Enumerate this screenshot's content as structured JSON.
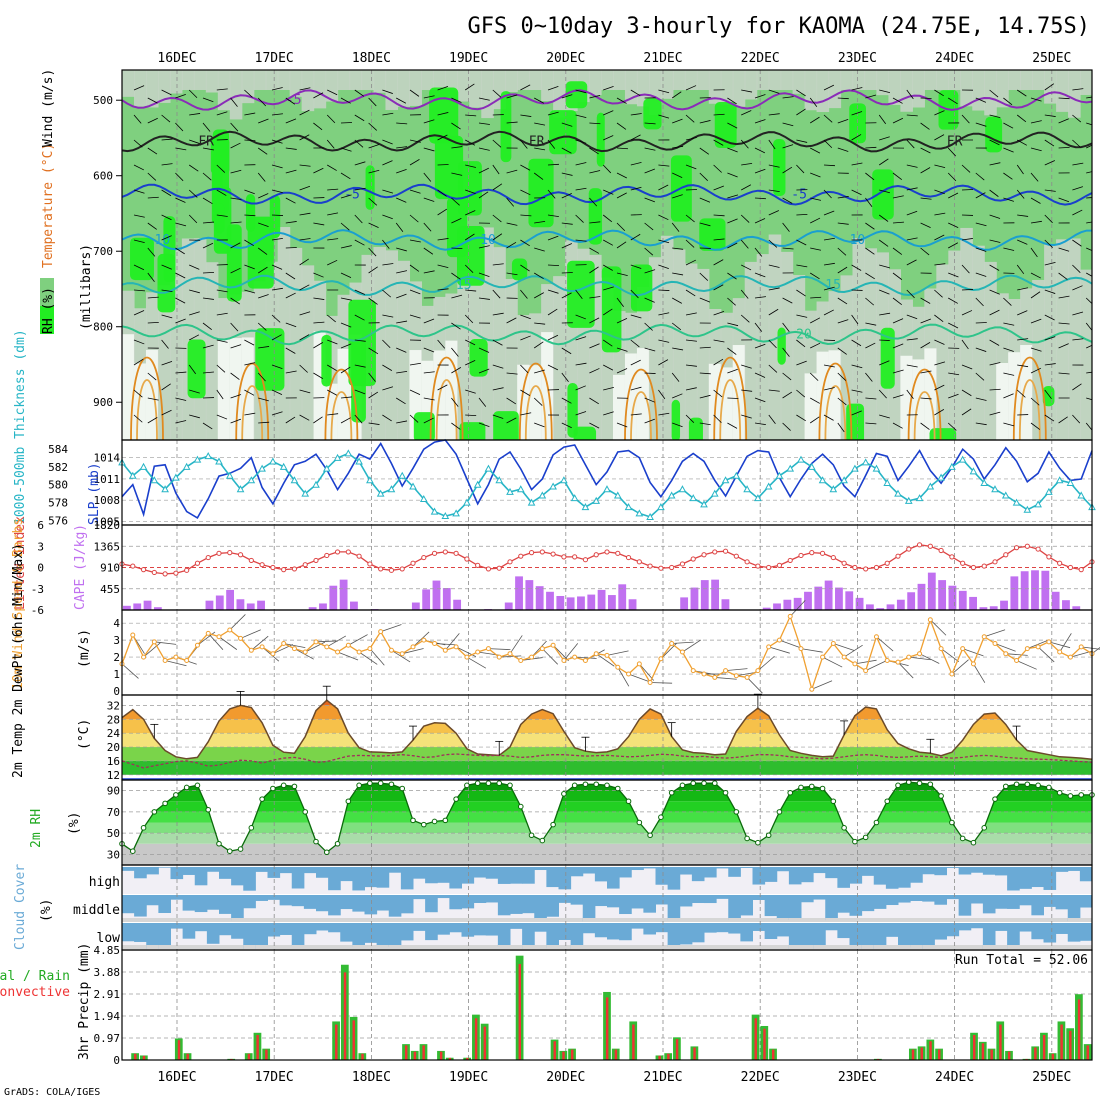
{
  "page": {
    "title": "GFS 0~10day 3-hourly for KAOMA (24.75E, 14.75S)",
    "credit": "GrADS: COLA/IGES"
  },
  "colors": {
    "rh_light": "#c8d4c8",
    "rh_mid": "#7fd07f",
    "rh_bright": "#22ee22",
    "rh_white": "#f0f6f0",
    "slp": "#1a3fcc",
    "thickness": "#27b5c6",
    "li": "#dd4444",
    "cape": "#c070f0",
    "wind": "#f0a030",
    "cloud": "#6aaad6",
    "precip_total": "#33bb33",
    "precip_conv": "#ee3333"
  },
  "chart_data": [
    {
      "type": "heatmap",
      "id": "upper_air",
      "ylabel": "(millibars)",
      "side_labels": [
        "RH (%)",
        "Temperature (°C)",
        "Wind (m/s)"
      ],
      "x_dates": [
        "16DEC",
        "17DEC",
        "18DEC",
        "19DEC",
        "20DEC",
        "21DEC",
        "22DEC",
        "23DEC",
        "24DEC",
        "25DEC"
      ],
      "y_ticks": [
        500,
        600,
        700,
        800,
        900
      ],
      "ylim": [
        460,
        950
      ],
      "isotherms": [
        {
          "label": "-5",
          "level": 500,
          "color": "#8a2bb8",
          "label_pos": [
            1.2
          ]
        },
        {
          "label": "FR",
          "level": 555,
          "color": "#222222",
          "label_pos": [
            0.3,
            3.7,
            8.0
          ]
        },
        {
          "label": "-5",
          "level": 625,
          "color": "#1a3fcc",
          "label_pos": [
            1.8,
            6.4
          ]
        },
        {
          "label": "10",
          "level": 685,
          "color": "#1a9fd0",
          "label_pos": [
            -0.15,
            3.2,
            7.0
          ]
        },
        {
          "label": "15",
          "level": 745,
          "color": "#25b5b5",
          "label_pos": [
            2.95,
            6.75
          ]
        },
        {
          "label": "20",
          "level": 810,
          "color": "#2ec48a",
          "label_pos": [
            6.45
          ]
        }
      ]
    },
    {
      "type": "line",
      "id": "slp_thickness",
      "left_label": "1000-500mb Thickness (dm)",
      "right_label": "SLP (mb)",
      "left_ticks": [
        576,
        578,
        580,
        582,
        584
      ],
      "right_ticks": [
        1005,
        1008,
        1011,
        1014
      ],
      "series": [
        {
          "name": "SLP (mb)",
          "axis": "right",
          "values": [
            1008.5,
            1010.2,
            1006.0,
            1012.8,
            1013.0,
            1009.0,
            1006.4,
            1005.5,
            1008.2,
            1011.4,
            1011.8,
            1012.5,
            1014.0,
            1009.8,
            1007.5,
            1010.4,
            1013.0,
            1013.5,
            1014.5,
            1012.3,
            1009.5,
            1011.8,
            1014.5,
            1013.8,
            1016.0,
            1013.2,
            1010.0,
            1012.5,
            1015.2,
            1016.2,
            1016.5,
            1014.5,
            1011.0,
            1007.5,
            1010.2,
            1013.8,
            1014.8,
            1012.4,
            1009.5,
            1011.0,
            1014.4,
            1015.5,
            1015.8,
            1013.0,
            1010.2,
            1012.0,
            1014.8,
            1015.0,
            1014.0,
            1010.5,
            1008.5,
            1010.8,
            1013.5,
            1014.6,
            1013.5,
            1010.8,
            1008.6,
            1011.4,
            1014.2,
            1015.0,
            1014.8,
            1011.2,
            1008.5,
            1011.0,
            1013.2,
            1014.5,
            1013.0,
            1010.0,
            1008.5,
            1011.5,
            1014.6,
            1014.2,
            1010.8,
            1012.8,
            1015.0,
            1012.2,
            1010.4,
            1012.6,
            1015.2,
            1013.8,
            1011.0,
            1013.0,
            1015.4,
            1013.5,
            1010.6,
            1011.8,
            1014.8,
            1012.5,
            1010.8,
            1011.0,
            1015.0
          ]
        },
        {
          "name": "1000-500mb Thickness (dm)",
          "axis": "left",
          "values": [
            582.5,
            581.0,
            582.0,
            580.5,
            579.5,
            580.8,
            582.0,
            582.8,
            583.2,
            582.6,
            581.0,
            579.5,
            580.5,
            581.8,
            582.6,
            582.0,
            580.5,
            579.0,
            580.0,
            581.8,
            583.0,
            583.5,
            582.6,
            580.5,
            579.0,
            579.5,
            581.0,
            579.8,
            578.4,
            577.0,
            576.5,
            576.8,
            578.0,
            580.0,
            581.8,
            580.5,
            579.2,
            579.5,
            578.0,
            578.8,
            579.8,
            580.5,
            578.5,
            577.5,
            578.2,
            579.5,
            578.8,
            577.5,
            576.8,
            576.4,
            577.5,
            578.8,
            579.5,
            578.5,
            577.8,
            579.0,
            580.5,
            581.0,
            579.5,
            578.5,
            579.8,
            581.0,
            581.8,
            582.8,
            582.0,
            580.5,
            579.5,
            580.5,
            581.8,
            582.5,
            581.8,
            580.2,
            579.0,
            578.2,
            578.5,
            579.8,
            580.8,
            582.0,
            582.8,
            581.5,
            580.2,
            579.5,
            578.8,
            578.0,
            577.2,
            577.8,
            579.2,
            580.5,
            580.2,
            578.8,
            577.5
          ]
        }
      ]
    },
    {
      "type": "bar",
      "id": "li_cape",
      "left_label": "Lifted Index",
      "right_label": "CAPE (J/kg)",
      "left_ticks": [
        "6",
        "3",
        "0",
        "-3",
        "-6"
      ],
      "right_ticks": [
        455,
        910,
        1365,
        1820
      ],
      "li_values": [
        -0.5,
        -0.2,
        0.3,
        0.7,
        0.9,
        0.8,
        0.4,
        -0.6,
        -1.4,
        -2.0,
        -2.1,
        -1.8,
        -1.0,
        -0.4,
        0.0,
        0.3,
        0.2,
        -0.4,
        -1.0,
        -1.7,
        -2.2,
        -2.2,
        -1.6,
        -0.5,
        0.2,
        0.4,
        0.2,
        -0.6,
        -1.4,
        -2.0,
        -2.2,
        -2.0,
        -1.2,
        -0.3,
        0.2,
        0.1,
        -0.8,
        -1.6,
        -2.1,
        -2.2,
        -1.9,
        -1.5,
        -1.5,
        -1.1,
        -1.8,
        -2.2,
        -2.0,
        -1.4,
        -0.8,
        -0.2,
        0.1,
        0.0,
        -0.5,
        -1.2,
        -1.8,
        -2.2,
        -2.3,
        -1.6,
        -0.8,
        -0.2,
        0.0,
        -0.3,
        -1.0,
        -1.7,
        -2.1,
        -2.0,
        -1.4,
        -0.6,
        0.0,
        0.2,
        0.0,
        -0.6,
        -1.6,
        -2.6,
        -3.2,
        -3.0,
        -2.4,
        -1.5,
        -0.6,
        0.0,
        -0.2,
        -0.8,
        -1.8,
        -2.8,
        -3.0,
        -2.6,
        -1.5,
        -0.6,
        0.0,
        0.3,
        -0.8
      ],
      "cape_values": [
        90,
        140,
        200,
        60,
        0,
        0,
        0,
        0,
        200,
        310,
        430,
        230,
        140,
        200,
        10,
        0,
        0,
        0,
        60,
        140,
        520,
        650,
        180,
        0,
        20,
        10,
        0,
        0,
        160,
        440,
        630,
        470,
        220,
        0,
        0,
        20,
        0,
        160,
        720,
        640,
        510,
        390,
        300,
        270,
        290,
        330,
        430,
        320,
        550,
        230,
        0,
        0,
        0,
        0,
        270,
        480,
        640,
        650,
        230,
        0,
        0,
        0,
        50,
        140,
        220,
        260,
        390,
        500,
        630,
        480,
        400,
        260,
        120,
        40,
        120,
        220,
        380,
        560,
        800,
        640,
        520,
        410,
        280,
        60,
        80,
        200,
        720,
        830,
        850,
        840,
        390,
        210,
        80,
        0
      ]
    },
    {
      "type": "line",
      "id": "wind10m",
      "left_label": "10m Wind Speed & Barbs",
      "unit": "(m/s)",
      "y_ticks": [
        0,
        1,
        2,
        3,
        4
      ],
      "values": [
        1.6,
        3.3,
        2.0,
        2.9,
        1.8,
        2.0,
        1.8,
        2.7,
        3.4,
        3.2,
        3.6,
        3.1,
        2.4,
        2.6,
        2.2,
        2.8,
        2.5,
        2.3,
        2.9,
        2.6,
        2.3,
        2.7,
        2.3,
        2.5,
        3.5,
        2.4,
        2.2,
        2.6,
        3.0,
        2.8,
        2.4,
        2.6,
        2.0,
        2.3,
        2.5,
        2.0,
        2.2,
        1.8,
        2.0,
        2.5,
        2.7,
        1.8,
        2.0,
        1.8,
        2.2,
        2.1,
        1.4,
        1.0,
        1.6,
        0.5,
        1.9,
        2.8,
        2.3,
        1.2,
        1.0,
        0.8,
        1.2,
        0.9,
        0.8,
        1.2,
        2.6,
        3.0,
        4.4,
        2.5,
        0.1,
        2.0,
        2.8,
        2.0,
        1.6,
        1.2,
        3.2,
        1.8,
        1.7,
        2.0,
        2.2,
        4.2,
        2.5,
        1.0,
        2.5,
        1.6,
        3.2,
        2.8,
        2.2,
        1.8,
        2.5,
        2.6,
        2.9,
        2.3,
        2.0,
        2.6,
        2.2
      ]
    },
    {
      "type": "area",
      "id": "temp2m",
      "left_label": "2m Temp 2m DewPt (6hr Min/Max)",
      "unit": "(°C)",
      "y_ticks": [
        12,
        16,
        20,
        24,
        28,
        32
      ],
      "temp_values": [
        28.5,
        30.8,
        28.0,
        22.5,
        19.0,
        17.2,
        16.6,
        17.0,
        21.5,
        27.5,
        31.0,
        32.0,
        31.4,
        27.0,
        20.5,
        18.5,
        18.2,
        23.0,
        30.5,
        33.5,
        31.0,
        24.0,
        19.8,
        18.6,
        18.5,
        18.3,
        18.6,
        22.0,
        26.0,
        27.0,
        26.8,
        24.0,
        19.5,
        18.0,
        17.8,
        17.6,
        20.0,
        26.5,
        29.5,
        30.8,
        29.6,
        24.5,
        19.8,
        18.8,
        18.4,
        18.6,
        19.5,
        23.0,
        28.0,
        31.0,
        29.5,
        23.0,
        19.2,
        18.4,
        18.2,
        17.8,
        18.0,
        24.5,
        28.8,
        31.2,
        29.0,
        23.5,
        19.0,
        18.2,
        17.6,
        17.2,
        17.4,
        23.5,
        29.0,
        31.5,
        31.0,
        25.0,
        21.0,
        19.5,
        18.5,
        18.2,
        17.5,
        18.5,
        22.0,
        26.5,
        29.5,
        29.8,
        26.5,
        22.0,
        19.0,
        18.4,
        17.8,
        17.2,
        17.0,
        16.8,
        16.5
      ],
      "dewpt_values": [
        16.0,
        15.0,
        14.0,
        14.6,
        15.2,
        15.8,
        16.0,
        15.4,
        14.5,
        14.8,
        15.6,
        16.2,
        16.0,
        15.4,
        16.2,
        16.8,
        17.0,
        16.5,
        15.6,
        15.8,
        16.6,
        17.4,
        17.6,
        17.5,
        17.4,
        17.6,
        17.8,
        17.5,
        17.0,
        17.2,
        17.8,
        18.0,
        17.8,
        17.6,
        17.5,
        17.6,
        17.4,
        17.0,
        17.2,
        17.6,
        17.8,
        17.8,
        17.6,
        17.4,
        17.5,
        17.6,
        17.4,
        17.2,
        17.3,
        17.6,
        17.9,
        17.8,
        17.4,
        17.2,
        17.3,
        17.0,
        16.8,
        17.0,
        17.4,
        17.8,
        17.8,
        17.6,
        17.2,
        17.0,
        16.8,
        16.6,
        16.8,
        17.2,
        17.6,
        17.8,
        17.6,
        17.2,
        17.0,
        17.2,
        17.4,
        17.2,
        17.0,
        16.8,
        17.0,
        17.4,
        17.6,
        17.4,
        17.0,
        16.8,
        16.6,
        16.5,
        16.4,
        16.2,
        16.0,
        15.8,
        15.6
      ]
    },
    {
      "type": "area",
      "id": "rh2m",
      "left_label": "2m RH",
      "unit": "(%)",
      "y_ticks": [
        30,
        50,
        70,
        90
      ],
      "values": [
        40,
        33,
        55,
        70,
        78,
        86,
        93,
        95,
        72,
        40,
        33,
        35,
        55,
        82,
        92,
        95,
        94,
        70,
        42,
        32,
        40,
        80,
        95,
        97,
        97,
        96,
        92,
        62,
        58,
        61,
        62,
        82,
        95,
        97,
        97,
        97,
        95,
        75,
        48,
        43,
        58,
        87,
        95,
        96,
        96,
        95,
        92,
        80,
        60,
        48,
        65,
        88,
        95,
        97,
        97,
        97,
        88,
        70,
        45,
        41,
        48,
        70,
        88,
        93,
        94,
        92,
        80,
        55,
        42,
        46,
        60,
        80,
        95,
        98,
        97,
        96,
        85,
        60,
        45,
        41,
        55,
        82,
        94,
        96,
        96,
        95,
        93,
        88,
        85,
        86,
        86
      ]
    },
    {
      "type": "heatmap",
      "id": "cloud",
      "left_label": "Cloud Cover",
      "unit": "(%)",
      "rows": [
        "high",
        "middle",
        "low"
      ]
    },
    {
      "type": "bar",
      "id": "precip",
      "left_label": "Total / Rain Convective",
      "ylabel": "3hr Precip (mm)",
      "y_ticks": [
        "0",
        "0.97",
        "1.94",
        "2.91",
        "3.88",
        "4.85"
      ],
      "ylim": [
        0,
        4.85
      ],
      "run_total_text": "Run Total = 52.06",
      "values": [
        0,
        0.3,
        0.2,
        0,
        0,
        0,
        0.95,
        0.3,
        0,
        0,
        0,
        0,
        0.05,
        0,
        0.3,
        1.2,
        0.5,
        0,
        0,
        0,
        0,
        0,
        0,
        0,
        1.7,
        4.2,
        1.9,
        0.3,
        0,
        0,
        0,
        0,
        0.7,
        0.4,
        0.7,
        0,
        0.4,
        0.1,
        0,
        0.1,
        2.0,
        1.6,
        0,
        0,
        0,
        4.6,
        0,
        0,
        0,
        0.9,
        0.4,
        0.5,
        0,
        0,
        0,
        3.0,
        0.5,
        0,
        1.7,
        0,
        0,
        0.2,
        0.3,
        1.0,
        0,
        0.6,
        0,
        0,
        0,
        0,
        0,
        0,
        2.0,
        1.5,
        0.5,
        0,
        0,
        0,
        0,
        0,
        0,
        0,
        0,
        0,
        0,
        0,
        0.05,
        0,
        0,
        0,
        0.5,
        0.6,
        0.9,
        0.5,
        0,
        0,
        0,
        1.2,
        0.8,
        0.5,
        1.7,
        0.4,
        0,
        0.05,
        0.6,
        1.2,
        0.3,
        1.7,
        1.4,
        2.9,
        0.7
      ]
    }
  ]
}
